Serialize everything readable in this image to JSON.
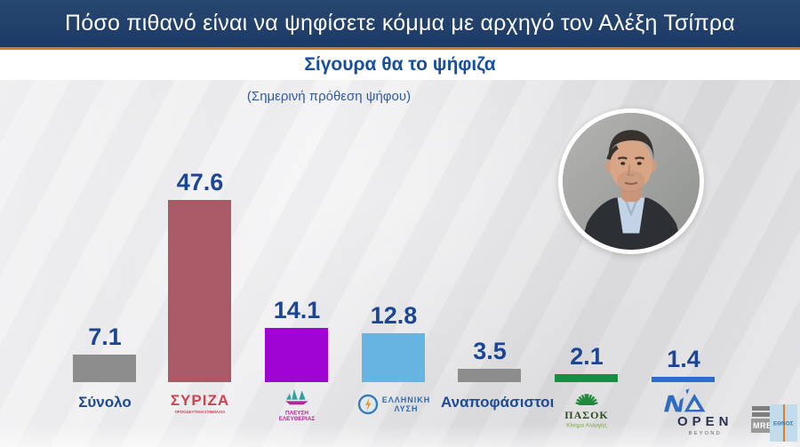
{
  "header": {
    "title": "Πόσο πιθανό είναι να ψηφίσετε κόμμα με αρχηγό τον Αλέξη Τσίπρα",
    "subtitle": "Σίγουρα θα το ψήφιζα"
  },
  "note": "(Σημερινή πρόθεση ψήφου)",
  "chart_data": {
    "type": "bar",
    "title": "Πόσο πιθανό είναι να ψηφίσετε κόμμα με αρχηγό τον Αλέξη Τσίπρα",
    "subtitle": "Σίγουρα θα το ψήφιζα",
    "note": "(Σημερινή πρόθεση ψήφου)",
    "unit": "percent",
    "ylim": [
      0,
      50
    ],
    "grid": false,
    "legend": "none",
    "categories": [
      "Σύνολο",
      "ΣΥΡΙΖΑ",
      "ΠΛΕΥΣΗ ΕΛΕΥΘΕΡΙΑΣ",
      "ΕΛΛΗΝΙΚΗ ΛΥΣΗ",
      "Αναποφάσιστοι",
      "ΠΑΣΟΚ",
      "ΝΔ"
    ],
    "values": [
      7.1,
      47.6,
      14.1,
      12.8,
      3.5,
      2.1,
      1.4
    ],
    "points": [
      {
        "label": "Σύνολο",
        "value": 7.1,
        "color": "#8d8d8d"
      },
      {
        "label": "ΣΥΡΙΖΑ",
        "sublabel": "ΠΡΟΟΔΕΥΤΙΚΗ ΣΥΜΜΑΧΙΑ",
        "value": 47.6,
        "color": "#aa5a66"
      },
      {
        "label": "ΠΛΕΥΣΗ",
        "sublabel": "ΕΛΕΥΘΕΡΙΑΣ",
        "value": 14.1,
        "color": "#a004d2"
      },
      {
        "label": "ΕΛΛΗΝΙΚΗ",
        "sublabel": "ΛΥΣΗ",
        "value": 12.8,
        "color": "#66b4e2"
      },
      {
        "label": "Αναποφάσιστοι",
        "value": 3.5,
        "color": "#8d8d8d"
      },
      {
        "label": "ΠΑΣΟΚ",
        "sublabel": "Κίνημα Αλλαγής",
        "value": 2.1,
        "color": "#1b8c43"
      },
      {
        "label": "ΝΔ",
        "value": 1.4,
        "color": "#2f6cc8"
      }
    ]
  },
  "branding": {
    "open_line1": "OPEN",
    "open_line2": "BEYOND",
    "mrb": "MRB",
    "ethnos": "ΕΘΝΟΣ"
  },
  "colors": {
    "banner_bg": "#1d3a66",
    "accent_orange": "#e0751c",
    "subtitle_blue": "#174f9e",
    "value_navy": "#1c4693"
  }
}
